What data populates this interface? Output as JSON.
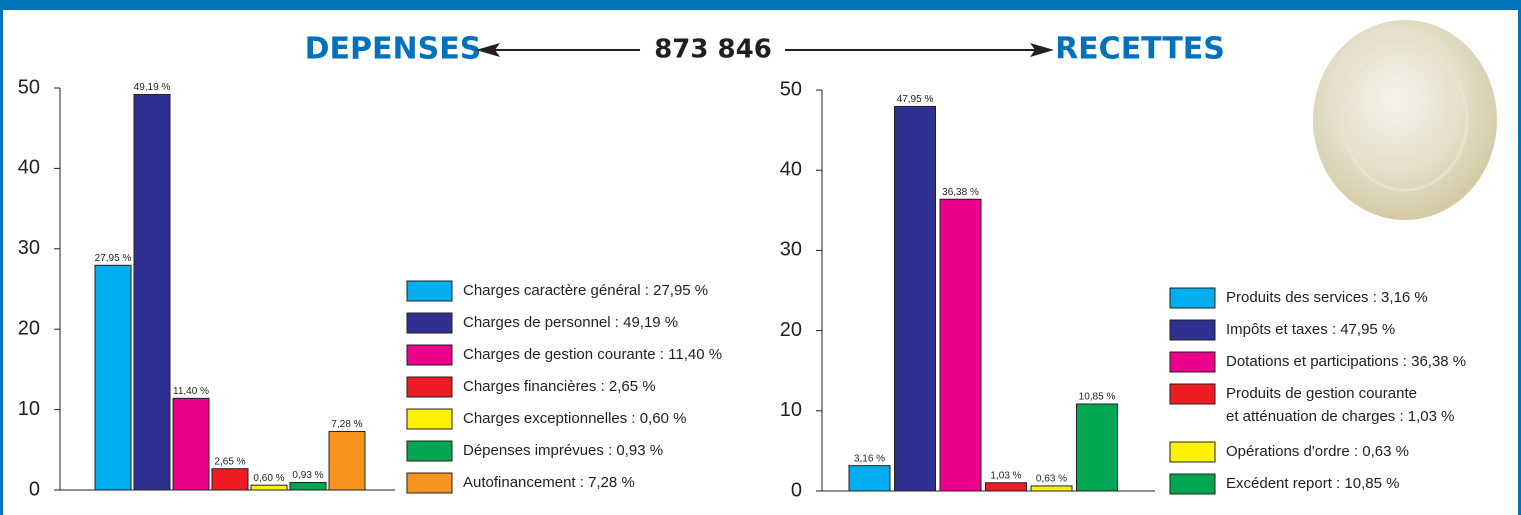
{
  "header": {
    "left": "DEPENSES",
    "center": "873 846",
    "right": "RECETTES"
  },
  "chart_data": [
    {
      "type": "bar",
      "categories": [
        "Charges caractère général : 27,95 %",
        "Charges de personnel : 49,19 %",
        "Charges de gestion courante : 11,40 %",
        "Charges financières : 2,65 %",
        "Charges exceptionnelles : 0,60 %",
        "Dépenses imprévues : 0,93 %",
        "Autofinancement : 7,28 %"
      ],
      "values": [
        27.95,
        49.19,
        11.4,
        2.65,
        0.6,
        0.93,
        7.28
      ],
      "value_labels": [
        "27,95 %",
        "49,19 %",
        "11,40 %",
        "2,65 %",
        "0,60 %",
        "0,93 %",
        "7,28 %"
      ],
      "colors": [
        "#00aeef",
        "#2e3192",
        "#ec008c",
        "#ed1c24",
        "#fff200",
        "#00a651",
        "#f7941d"
      ],
      "ylim": [
        0,
        50
      ],
      "yticks": [
        0,
        10,
        20,
        30,
        40,
        50
      ]
    },
    {
      "type": "bar",
      "categories": [
        "Produits des services : 3,16 %",
        "Impôts et taxes : 47,95 %",
        "Dotations et participations : 36,38 %",
        "Produits de gestion courante\net atténuation de charges : 1,03 %",
        "Opérations d'ordre : 0,63 %",
        "Excédent report : 10,85 %"
      ],
      "values": [
        3.16,
        47.95,
        36.38,
        1.03,
        0.63,
        10.85
      ],
      "value_labels": [
        "3,16 %",
        "47,95 %",
        "36,38 %",
        "1,03 %",
        "0,63 %",
        "10,85 %"
      ],
      "colors": [
        "#00aeef",
        "#2e3192",
        "#ec008c",
        "#ed1c24",
        "#fff200",
        "#00a651"
      ],
      "ylim": [
        0,
        50
      ],
      "yticks": [
        0,
        10,
        20,
        30,
        40,
        50
      ]
    }
  ]
}
